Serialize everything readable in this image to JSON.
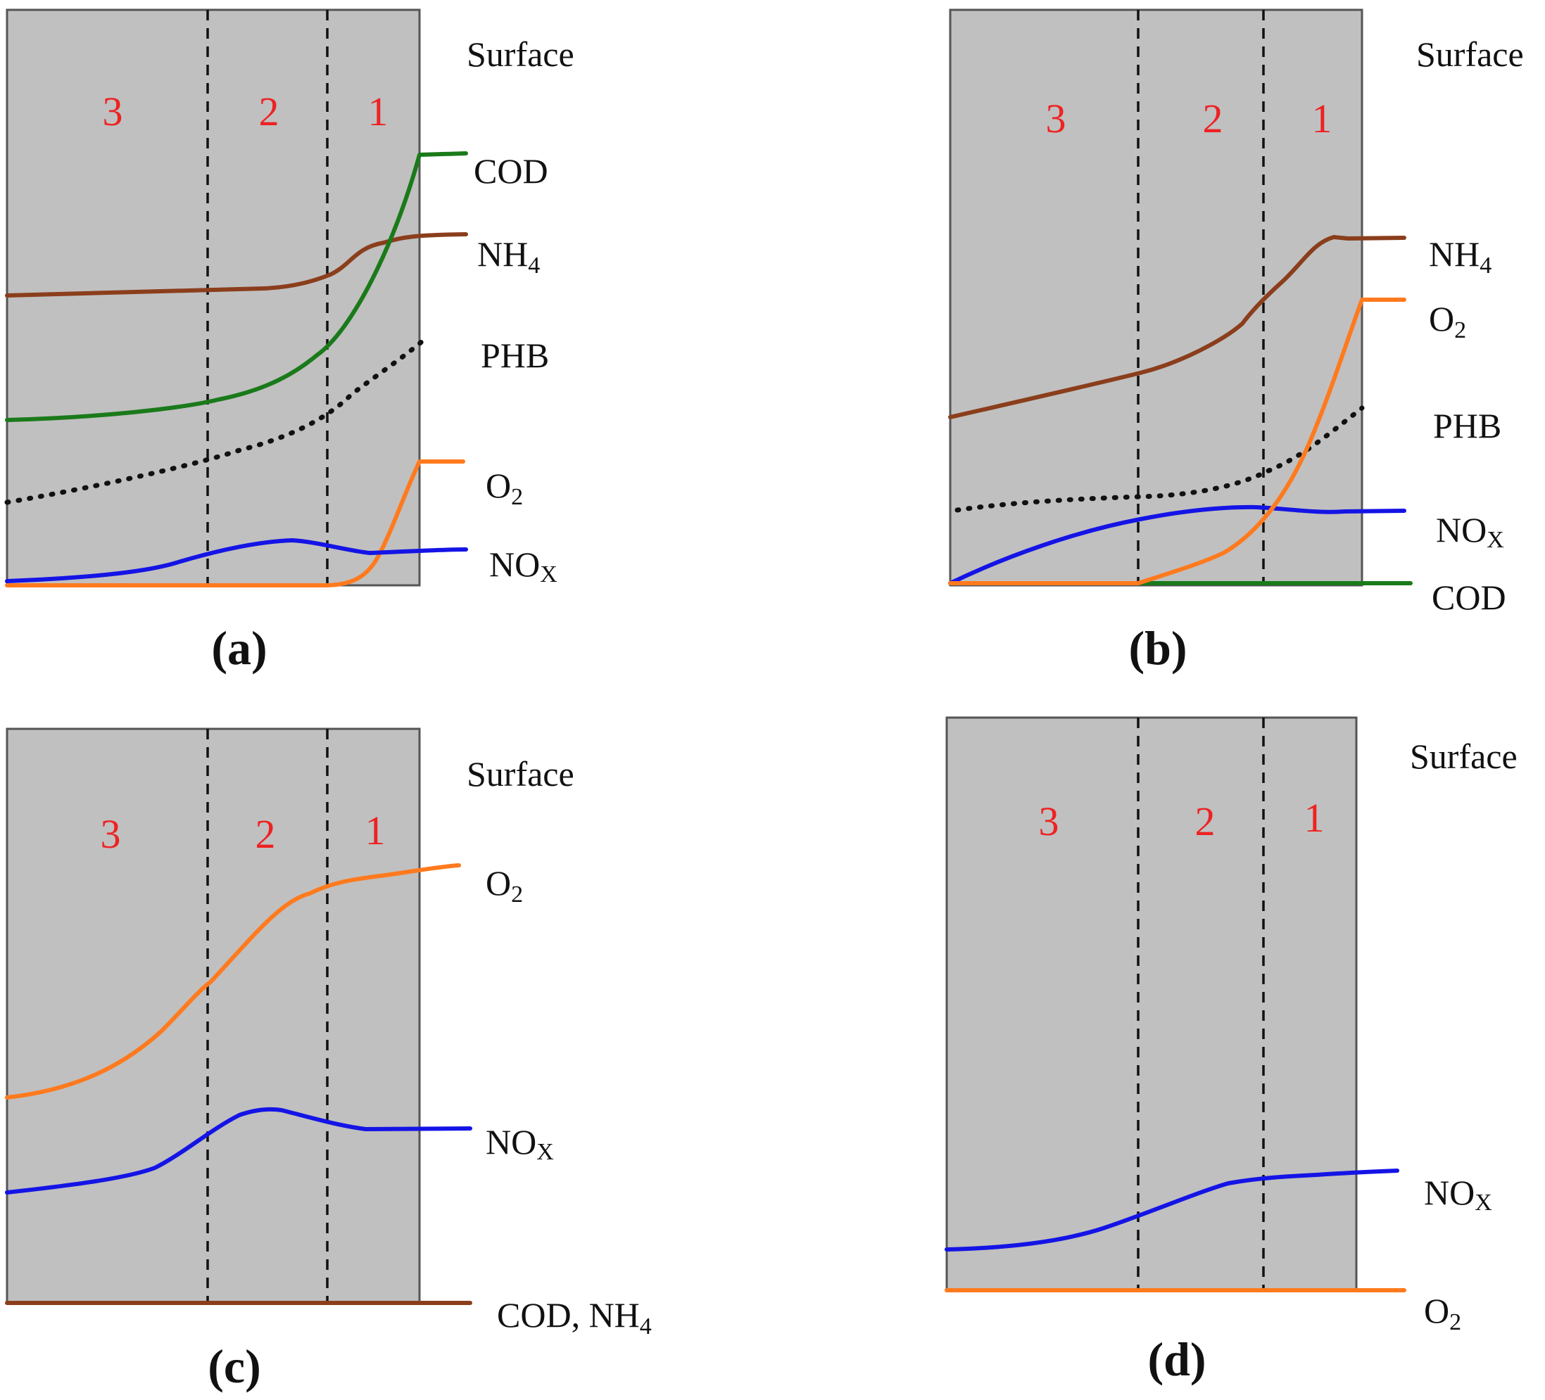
{
  "colors": {
    "cod": "#1a7a1a",
    "nh4": "#8b3e1c",
    "o2": "#ff7a1e",
    "nox": "#1414e6",
    "phb": "#111111",
    "zone_text": "#ee2222",
    "background_fill": "#c0c0c0"
  },
  "panels": {
    "a": {
      "caption": "(a)",
      "surface": "Surface",
      "zones": [
        "3",
        "2",
        "1"
      ],
      "species": {
        "cod": "COD",
        "nh4": {
          "main": "NH",
          "sub": "4"
        },
        "phb": "PHB",
        "o2": {
          "main": "O",
          "sub": "2"
        },
        "nox": {
          "main": "NO",
          "sub": "X"
        }
      }
    },
    "b": {
      "caption": "(b)",
      "surface": "Surface",
      "zones": [
        "3",
        "2",
        "1"
      ],
      "species": {
        "nh4": {
          "main": "NH",
          "sub": "4"
        },
        "o2": {
          "main": "O",
          "sub": "2"
        },
        "phb": "PHB",
        "nox": {
          "main": "NO",
          "sub": "X"
        },
        "cod": "COD"
      }
    },
    "c": {
      "caption": "(c)",
      "surface": "Surface",
      "zones": [
        "3",
        "2",
        "1"
      ],
      "species": {
        "o2": {
          "main": "O",
          "sub": "2"
        },
        "nox": {
          "main": "NO",
          "sub": "X"
        },
        "cod_nh4": {
          "main": "COD, NH",
          "sub": "4"
        }
      }
    },
    "d": {
      "caption": "(d)",
      "surface": "Surface",
      "zones": [
        "3",
        "2",
        "1"
      ],
      "species": {
        "nox": {
          "main": "NO",
          "sub": "X"
        },
        "o2": {
          "main": "O",
          "sub": "2"
        }
      }
    }
  }
}
